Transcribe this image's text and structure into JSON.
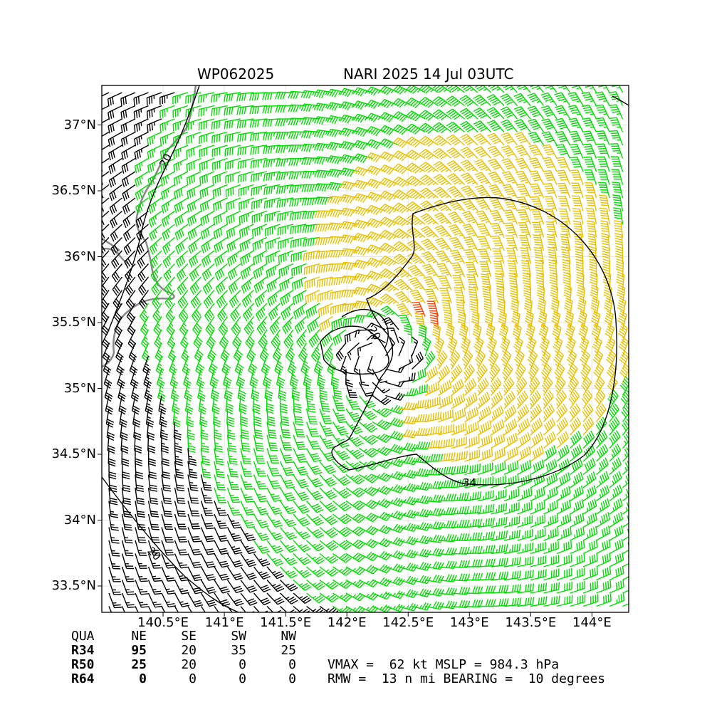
{
  "title": {
    "left": "WP062025",
    "right": "NARI 2025 14 Jul 03UTC"
  },
  "axes": {
    "lat_ticks": [
      "37°N",
      "36.5°N",
      "36°N",
      "35.5°N",
      "35°N",
      "34.5°N",
      "34°N",
      "33.5°N"
    ],
    "lat_values": [
      37.0,
      36.5,
      36.0,
      35.5,
      35.0,
      34.5,
      34.0,
      33.5
    ],
    "lon_ticks": [
      "140.5°E",
      "141°E",
      "141.5°E",
      "142°E",
      "142.5°E",
      "143°E",
      "143.5°E",
      "144°E"
    ],
    "lon_values": [
      140.5,
      141.0,
      141.5,
      142.0,
      142.5,
      143.0,
      143.5,
      144.0
    ],
    "lon_range": [
      140.0,
      144.3
    ],
    "lat_range": [
      33.3,
      37.3
    ]
  },
  "contours": {
    "label_20_a": "20",
    "label_20_b": "20",
    "label_34": "34",
    "label_20_c": "20"
  },
  "colors": {
    "barb_34_50": "#00dd00",
    "barb_50_64": "#e8c000",
    "barb_64": "#ff4400",
    "barb_lt34": "#000000",
    "coast": "#888888",
    "contour": "#000000"
  },
  "storm_center": {
    "lon": 142.3,
    "lat": 35.25
  },
  "radii_table": {
    "header": [
      "QUA",
      "NE",
      "SE",
      "SW",
      "NW"
    ],
    "rows": [
      {
        "label": "R34",
        "values": [
          "95",
          "20",
          "35",
          "25"
        ]
      },
      {
        "label": "R50",
        "values": [
          "25",
          "20",
          "0",
          "0"
        ]
      },
      {
        "label": "R64",
        "values": [
          "0",
          "0",
          "0",
          "0"
        ]
      }
    ]
  },
  "stats": {
    "line1": "VMAX =  62 kt MSLP = 984.3 hPa",
    "line2": "RMW =  13 n mi BEARING =  10 degrees"
  }
}
